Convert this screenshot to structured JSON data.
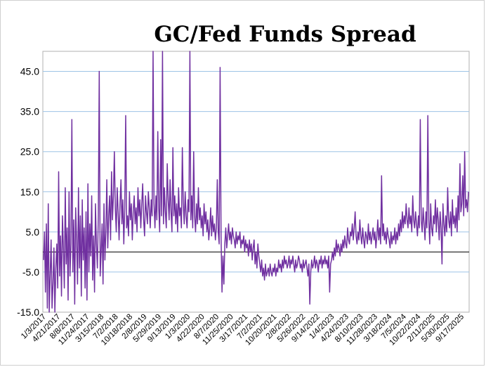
{
  "chart_data": {
    "type": "line",
    "title": "GC/Fed Funds Spread",
    "xlabel": "",
    "ylabel": "",
    "ylim": [
      -15,
      50
    ],
    "y_ticks": [
      -15.0,
      -5.0,
      5.0,
      15.0,
      25.0,
      35.0,
      45.0
    ],
    "y_tick_labels": [
      "-15.0",
      "-5.0",
      "5.0",
      "15.0",
      "25.0",
      "35.0",
      "45.0"
    ],
    "x_tick_labels": [
      "1/3/2017",
      "4/21/2017",
      "8/8/2017",
      "11/24/2017",
      "3/15/2018",
      "7/2/2018",
      "10/18/2018",
      "2/8/2019",
      "5/29/2019",
      "9/13/2019",
      "1/3/2020",
      "4/22/2020",
      "8/7/2020",
      "11/25/2020",
      "3/17/2021",
      "7/2/2021",
      "10/20/2021",
      "2/8/2022",
      "5/26/2022",
      "9/14/2022",
      "1/4/2023",
      "4/24/2023",
      "8/10/2023",
      "11/28/2023",
      "3/18/2024",
      "7/5/2024",
      "10/22/2024",
      "2/11/2025",
      "5/30/2025",
      "9/17/2025"
    ],
    "grid": "horizontal",
    "zero_line": true,
    "line_color": "#7030a0",
    "grid_color": "#9dc3e6",
    "series": [
      {
        "name": "",
        "x_range": [
          "1/3/2017",
          "10/31/2025"
        ],
        "values": [
          -2,
          5,
          -10,
          7,
          -14,
          12,
          -15,
          -6,
          3,
          -14,
          -8,
          1,
          -15,
          -4,
          2,
          -9,
          20,
          -6,
          4,
          -11,
          9,
          1,
          -9,
          16,
          -3,
          6,
          -12,
          15,
          -6,
          2,
          33,
          -5,
          8,
          -13,
          11,
          3,
          -8,
          16,
          -4,
          9,
          -11,
          13,
          -2,
          6,
          -9,
          10,
          -12,
          17,
          -5,
          7,
          -1,
          14,
          -7,
          4,
          -10,
          12,
          2,
          -4,
          9,
          45,
          -6,
          0,
          7,
          -8,
          12,
          -2,
          5,
          18,
          1,
          9,
          14,
          3,
          20,
          8,
          14,
          25,
          11,
          5,
          16,
          10,
          3,
          12,
          18,
          7,
          13,
          2,
          11,
          34,
          6,
          9,
          4,
          15,
          8,
          12,
          3,
          10,
          14,
          7,
          11,
          5,
          16,
          9,
          13,
          6,
          12,
          17,
          8,
          4,
          14,
          10,
          7,
          15,
          11,
          6,
          13,
          9,
          50,
          12,
          6,
          14,
          8,
          30,
          11,
          5,
          28,
          9,
          50,
          7,
          16,
          10,
          6,
          22,
          13,
          8,
          18,
          10,
          5,
          26,
          9,
          14,
          7,
          12,
          5,
          16,
          9,
          11,
          6,
          26,
          12,
          7,
          15,
          9,
          6,
          13,
          10,
          50,
          8,
          14,
          6,
          25,
          9,
          5,
          12,
          7,
          16,
          8,
          11,
          6,
          9,
          4,
          12,
          7,
          10,
          5,
          8,
          3,
          6,
          11,
          4,
          9,
          5,
          7,
          3,
          6,
          18,
          5,
          2,
          46,
          4,
          -10,
          -1,
          -8,
          2,
          6,
          1,
          4,
          7,
          3,
          5,
          2,
          6,
          4,
          3,
          1,
          5,
          2,
          4,
          3,
          5,
          1,
          3,
          2,
          4,
          0,
          3,
          1,
          2,
          -1,
          3,
          0,
          2,
          -2,
          1,
          3,
          -3,
          0,
          -4,
          2,
          -1,
          -3,
          -5,
          -2,
          -6,
          -4,
          -7,
          -3,
          -6,
          -5,
          -4,
          -6,
          -3,
          -5,
          -6,
          -4,
          -5,
          -3,
          -6,
          -4,
          -5,
          -2,
          -4,
          -3,
          -5,
          -2,
          -4,
          -1,
          -3,
          -2,
          -4,
          -3,
          -1,
          -4,
          -2,
          -3,
          -1,
          -3,
          -5,
          -2,
          -4,
          -3,
          -1,
          -2,
          -4,
          -3,
          -5,
          -2,
          -4,
          -3,
          -2,
          -4,
          -6,
          -3,
          -13,
          -5,
          -2,
          -4,
          -3,
          -1,
          -4,
          -2,
          -3,
          -5,
          -2,
          -3,
          -1,
          -4,
          -2,
          -3,
          -1,
          -3,
          -2,
          -4,
          -1,
          -10,
          -3,
          -2,
          0,
          -2,
          1,
          -1,
          3,
          0,
          2,
          1,
          -1,
          2,
          0,
          3,
          1,
          4,
          2,
          1,
          6,
          3,
          2,
          5,
          4,
          7,
          3,
          6,
          10,
          4,
          2,
          5,
          3,
          8,
          4,
          2,
          6,
          3,
          1,
          5,
          4,
          2,
          7,
          3,
          5,
          2,
          4,
          6,
          3,
          5,
          1,
          4,
          8,
          3,
          6,
          2,
          19,
          4,
          7,
          3,
          5,
          2,
          6,
          4,
          3,
          1,
          5,
          2,
          4,
          3,
          6,
          2,
          5,
          3,
          7,
          4,
          8,
          5,
          10,
          6,
          9,
          7,
          12,
          8,
          6,
          11,
          7,
          9,
          5,
          14,
          8,
          6,
          10,
          7,
          4,
          9,
          6,
          33,
          8,
          5,
          11,
          7,
          3,
          10,
          6,
          34,
          8,
          2,
          12,
          6,
          4,
          9,
          7,
          13,
          5,
          11,
          8,
          3,
          10,
          6,
          -3,
          12,
          7,
          4,
          9,
          5,
          16,
          8,
          6,
          10,
          4,
          13,
          7,
          9,
          6,
          11,
          5,
          14,
          8,
          22,
          10,
          12,
          19,
          9,
          25,
          11,
          13,
          10,
          15
        ]
      }
    ]
  }
}
